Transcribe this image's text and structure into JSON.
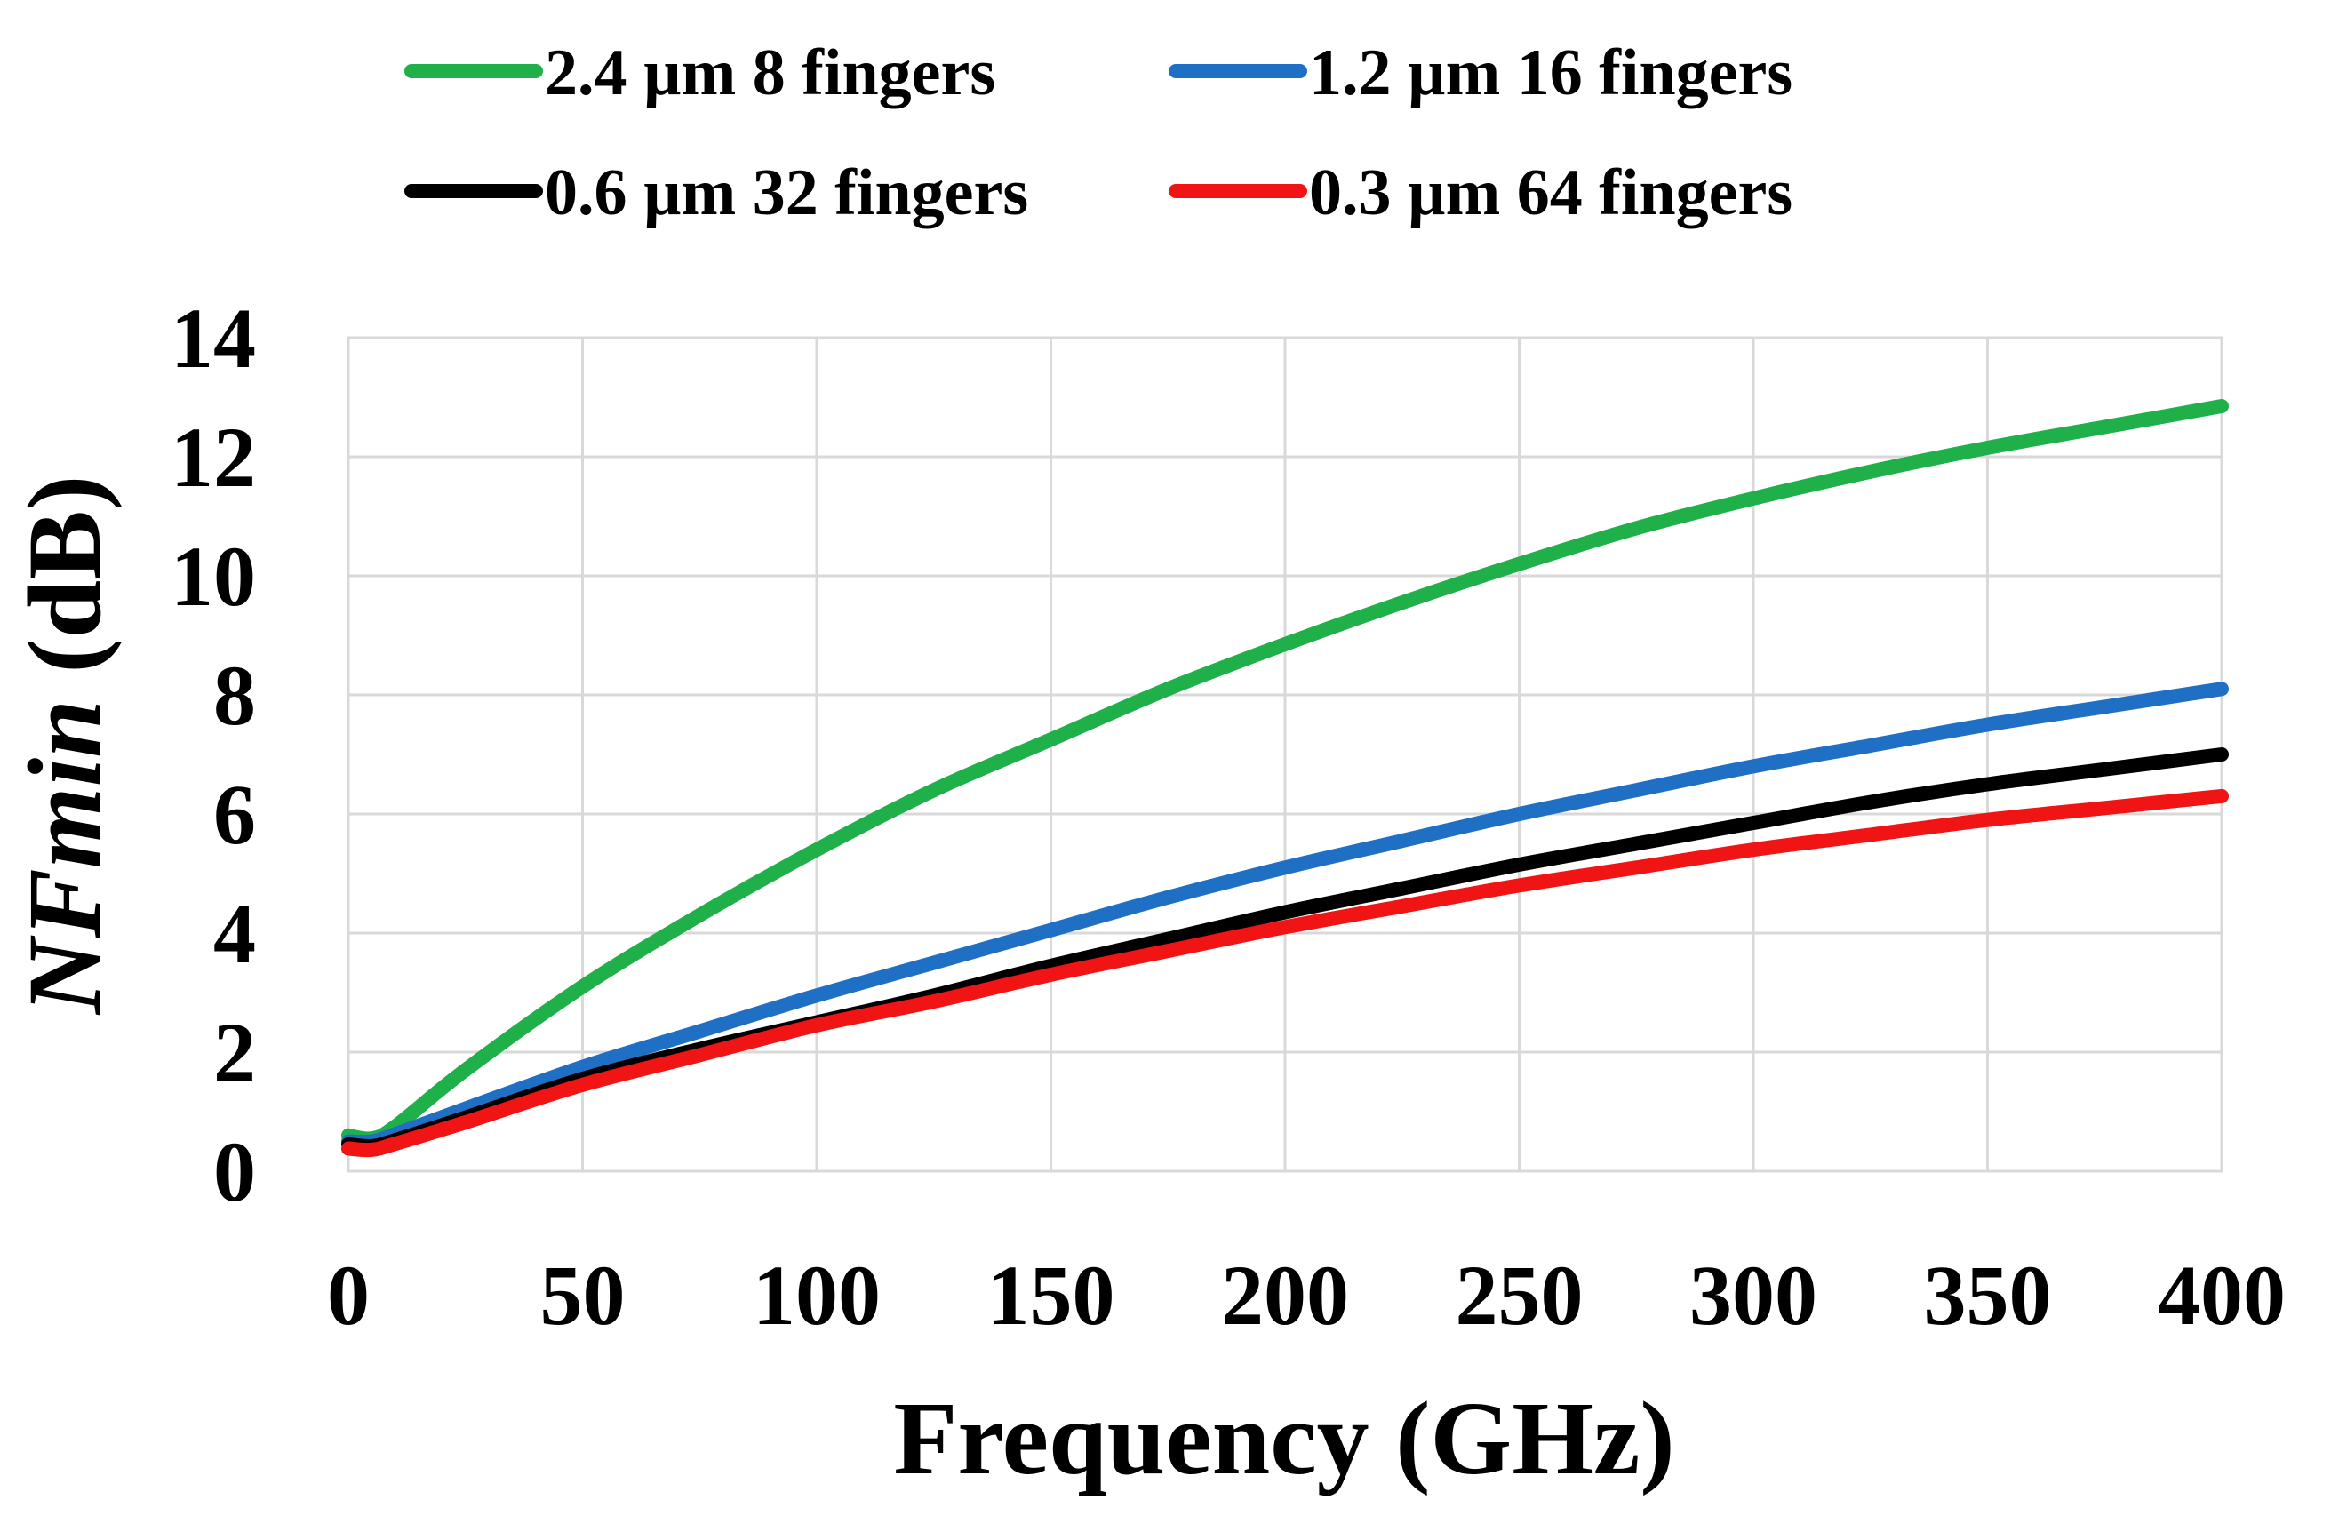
{
  "chart_data": {
    "type": "line",
    "title": "",
    "xlabel": "Frequency (GHz)",
    "ylabel_italic": "NFmin",
    "ylabel_unit": " (dB)",
    "xlim": [
      0,
      400
    ],
    "ylim": [
      0,
      14
    ],
    "xticks": [
      0,
      50,
      100,
      150,
      200,
      250,
      300,
      350,
      400
    ],
    "yticks": [
      0,
      2,
      4,
      6,
      8,
      10,
      12,
      14
    ],
    "grid": true,
    "legend_position": "top",
    "x": [
      0,
      5,
      10,
      25,
      50,
      75,
      100,
      125,
      150,
      175,
      200,
      225,
      250,
      275,
      300,
      325,
      350,
      375,
      400
    ],
    "series": [
      {
        "name": "2.4 µm 8 fingers",
        "color": "#1fb04a",
        "values": [
          0.6,
          0.55,
          0.75,
          1.7,
          3.1,
          4.3,
          5.4,
          6.4,
          7.25,
          8.1,
          8.85,
          9.55,
          10.2,
          10.8,
          11.3,
          11.75,
          12.15,
          12.5,
          12.85
        ]
      },
      {
        "name": "1.2 µm 16 fingers",
        "color": "#1f6fc4",
        "values": [
          0.5,
          0.5,
          0.62,
          1.05,
          1.75,
          2.35,
          2.95,
          3.5,
          4.05,
          4.6,
          5.1,
          5.55,
          6.0,
          6.4,
          6.8,
          7.15,
          7.5,
          7.8,
          8.1
        ]
      },
      {
        "name": "0.6 µm 32 fingers",
        "color": "#000000",
        "values": [
          0.45,
          0.42,
          0.52,
          0.9,
          1.55,
          2.05,
          2.5,
          2.95,
          3.45,
          3.9,
          4.35,
          4.75,
          5.15,
          5.5,
          5.85,
          6.2,
          6.5,
          6.75,
          7.0
        ]
      },
      {
        "name": "0.3 µm 64 fingers",
        "color": "#f01414",
        "values": [
          0.38,
          0.36,
          0.46,
          0.82,
          1.45,
          1.95,
          2.45,
          2.85,
          3.3,
          3.7,
          4.1,
          4.45,
          4.8,
          5.1,
          5.4,
          5.65,
          5.9,
          6.1,
          6.3
        ]
      }
    ]
  }
}
